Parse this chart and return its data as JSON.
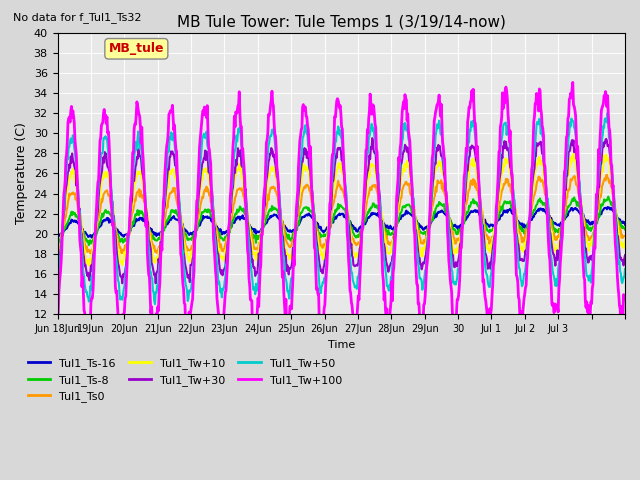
{
  "title": "MB Tule Tower: Tule Temps 1 (3/19/14-now)",
  "no_data_text": "No data for f_Tul1_Ts32",
  "xlabel": "Time",
  "ylabel": "Temperature (C)",
  "ylim": [
    12,
    40
  ],
  "yticks": [
    12,
    14,
    16,
    18,
    20,
    22,
    24,
    26,
    28,
    30,
    32,
    34,
    36,
    38,
    40
  ],
  "background_color": "#d8d8d8",
  "plot_bg_color": "#e8e8e8",
  "legend_box_color": "#ffff99",
  "legend_box_label": "MB_tule",
  "n_days": 17,
  "series": [
    {
      "label": "Tul1_Ts-16",
      "color": "#0000cc",
      "linewidth": 1.5,
      "amplitude": 0.8,
      "base": 20.5,
      "phase": 0.1,
      "trend": 0.08,
      "noise": 0.1
    },
    {
      "label": "Tul1_Ts-8",
      "color": "#00cc00",
      "linewidth": 1.5,
      "amplitude": 1.5,
      "base": 20.5,
      "phase": 0.2,
      "trend": 0.09,
      "noise": 0.15
    },
    {
      "label": "Tul1_Ts0",
      "color": "#ff9900",
      "linewidth": 1.5,
      "amplitude": 3.0,
      "base": 21.0,
      "phase": 0.3,
      "trend": 0.1,
      "noise": 0.2
    },
    {
      "label": "Tul1_Tw+10",
      "color": "#ffff00",
      "linewidth": 1.5,
      "amplitude": 4.5,
      "base": 21.5,
      "phase": 0.4,
      "trend": 0.1,
      "noise": 0.25
    },
    {
      "label": "Tul1_Tw+30",
      "color": "#9900cc",
      "linewidth": 1.5,
      "amplitude": 6.0,
      "base": 21.5,
      "phase": 0.45,
      "trend": 0.11,
      "noise": 0.3
    },
    {
      "label": "Tul1_Tw+50",
      "color": "#00cccc",
      "linewidth": 1.5,
      "amplitude": 8.0,
      "base": 21.5,
      "phase": 0.5,
      "trend": 0.12,
      "noise": 0.35
    },
    {
      "label": "Tul1_Tw+100",
      "color": "#ff00ff",
      "linewidth": 2.0,
      "amplitude": 11.0,
      "base": 21.0,
      "phase": 0.6,
      "trend": 0.13,
      "noise": 0.6
    }
  ],
  "xtick_positions": [
    0,
    1,
    2,
    3,
    4,
    5,
    6,
    7,
    8,
    9,
    10,
    11,
    12,
    13,
    14,
    15,
    16,
    17
  ],
  "xtick_labels": [
    "Jun 18Jun",
    "19Jun",
    "20Jun",
    "21Jun",
    "22Jun",
    "23Jun",
    "24Jun",
    "25Jun",
    "26Jun",
    "27Jun",
    "28Jun",
    "29Jun",
    "30",
    "Jul 1",
    "Jul 2",
    "Jul 3",
    "",
    ""
  ]
}
